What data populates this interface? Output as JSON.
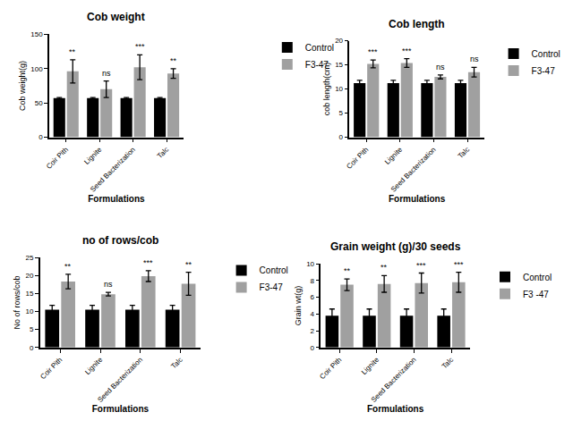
{
  "chart_data": [
    {
      "type": "bar",
      "title": "Cob weight",
      "x_label": "Formulations",
      "y_label": "Cob weight(g)",
      "categories": [
        "Coir Pith",
        "Lignite",
        "Seed Bacterization",
        "Talc"
      ],
      "series": [
        {
          "name": "Control",
          "color": "#000000",
          "values": [
            57,
            57,
            57,
            57
          ],
          "error": [
            1,
            1,
            1,
            1
          ]
        },
        {
          "name": "F3-47",
          "color": "#a0a0a0",
          "values": [
            96,
            70,
            102,
            93
          ],
          "error": [
            17,
            12,
            18,
            7
          ]
        }
      ],
      "annotations": [
        "**",
        "ns",
        "***",
        "**"
      ],
      "ylim": [
        0,
        150
      ],
      "yticks": [
        0,
        50,
        100,
        150
      ],
      "grid": false,
      "legend": "right"
    },
    {
      "type": "bar",
      "title": "Cob length",
      "x_label": "Formulations",
      "y_label": "cob length(cm)",
      "categories": [
        "Coir Pith",
        "Lignite",
        "Seed Bacterization",
        "Talc"
      ],
      "series": [
        {
          "name": "Control",
          "color": "#000000",
          "values": [
            11.2,
            11.2,
            11.2,
            11.2
          ],
          "error": [
            0.6,
            0.6,
            0.6,
            0.6
          ]
        },
        {
          "name": "F3-47",
          "color": "#a0a0a0",
          "values": [
            15.2,
            15.4,
            12.5,
            13.5
          ],
          "error": [
            0.8,
            0.9,
            0.4,
            1
          ]
        }
      ],
      "annotations": [
        "***",
        "***",
        "ns",
        "ns"
      ],
      "ylim": [
        0,
        20
      ],
      "yticks": [
        0,
        5,
        10,
        15,
        20
      ],
      "grid": false,
      "legend": "right"
    },
    {
      "type": "bar",
      "title": "no of rows/cob",
      "x_label": "Formulations",
      "y_label": "No of rows/cob",
      "categories": [
        "Coir Pith",
        "Lignite",
        "Seed Bacterization",
        "Talc"
      ],
      "series": [
        {
          "name": "Control",
          "color": "#000000",
          "values": [
            10.5,
            10.5,
            10.5,
            10.5
          ],
          "error": [
            1.2,
            1.2,
            1.2,
            1.2
          ]
        },
        {
          "name": "F3-47",
          "color": "#a0a0a0",
          "values": [
            18.3,
            14.8,
            19.8,
            17.7
          ],
          "error": [
            2,
            0.5,
            1.5,
            3.2
          ]
        }
      ],
      "annotations": [
        "**",
        "ns",
        "***",
        "**"
      ],
      "ylim": [
        0,
        25
      ],
      "yticks": [
        0,
        5,
        10,
        15,
        20,
        25
      ],
      "grid": false,
      "legend": "right"
    },
    {
      "type": "bar",
      "title": "Grain weight (g)/30 seeds",
      "x_label": "Formulations",
      "y_label": "Grain wt(g)",
      "categories": [
        "Coir Pith",
        "Lignite",
        "Seed Bacterization",
        "Talc"
      ],
      "series": [
        {
          "name": "Control",
          "color": "#000000",
          "values": [
            3.8,
            3.8,
            3.8,
            3.8
          ],
          "error": [
            0.8,
            0.8,
            0.8,
            0.8
          ]
        },
        {
          "name": "F3 -47",
          "color": "#a0a0a0",
          "values": [
            7.5,
            7.6,
            7.7,
            7.8
          ],
          "error": [
            0.7,
            1,
            1.2,
            1.2
          ]
        }
      ],
      "annotations": [
        "**",
        "**",
        "***",
        "***"
      ],
      "ylim": [
        0,
        10
      ],
      "yticks": [
        0,
        2,
        4,
        6,
        8,
        10
      ],
      "grid": false,
      "legend": "right"
    }
  ]
}
